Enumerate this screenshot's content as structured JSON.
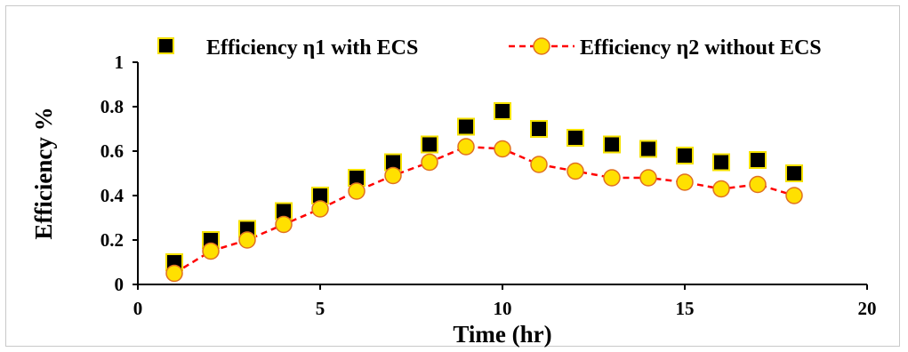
{
  "chart_data": {
    "type": "scatter",
    "title": "",
    "xlabel": "Time (hr)",
    "ylabel": "Efficiency %",
    "xlim": [
      0,
      20
    ],
    "ylim": [
      0,
      1
    ],
    "xticks": [
      "0",
      "5",
      "10",
      "15",
      "20"
    ],
    "yticks": [
      "0",
      "0.2",
      "0.4",
      "0.6",
      "0.8",
      "1"
    ],
    "grid": false,
    "legend_position": "top",
    "series": [
      {
        "name": "Efficiency η1 with ECS",
        "marker": "square",
        "line": "none",
        "fill_color": "#000000",
        "edge_color": "#f5e100",
        "x": [
          1,
          2,
          3,
          4,
          5,
          6,
          7,
          8,
          9,
          10,
          11,
          12,
          13,
          14,
          15,
          16,
          17,
          18
        ],
        "y": [
          0.1,
          0.2,
          0.25,
          0.33,
          0.4,
          0.48,
          0.55,
          0.63,
          0.71,
          0.78,
          0.7,
          0.66,
          0.63,
          0.61,
          0.58,
          0.55,
          0.56,
          0.5
        ]
      },
      {
        "name": "Efficiency η2 without ECS",
        "marker": "circle",
        "line": "dashed",
        "fill_color": "#ffe000",
        "edge_color": "#e07020",
        "line_color": "#ff0000",
        "x": [
          1,
          2,
          3,
          4,
          5,
          6,
          7,
          8,
          9,
          10,
          11,
          12,
          13,
          14,
          15,
          16,
          17,
          18
        ],
        "y": [
          0.05,
          0.15,
          0.2,
          0.27,
          0.34,
          0.42,
          0.49,
          0.55,
          0.62,
          0.61,
          0.54,
          0.51,
          0.48,
          0.48,
          0.46,
          0.43,
          0.45,
          0.4
        ]
      }
    ]
  }
}
